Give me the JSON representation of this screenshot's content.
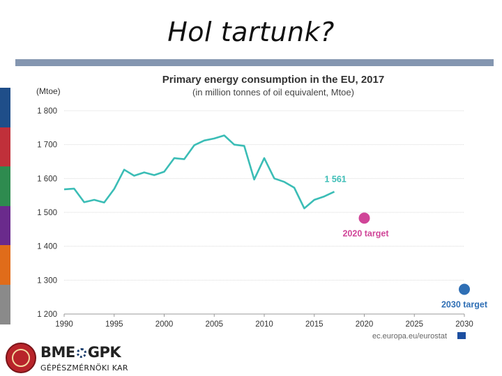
{
  "slide": {
    "title": "Hol tartunk?"
  },
  "colors": {
    "side_bars": [
      "#1f4e89",
      "#c0303a",
      "#2e8b4f",
      "#6a2a8c",
      "#e06c1a",
      "#8a8a8a"
    ],
    "line": "#3bbdb6",
    "target_2020": "#d04598",
    "target_2030": "#2f6fb5",
    "rule": "#8496b0"
  },
  "chart_data": {
    "type": "line",
    "title": "Primary energy consumption in the EU, 2017",
    "subtitle": "(in million tonnes of oil equivalent, Mtoe)",
    "ylabel": "(Mtoe)",
    "xlim": [
      1990,
      2030
    ],
    "ylim": [
      1200,
      1800
    ],
    "yticks": [
      1200,
      1300,
      1400,
      1500,
      1600,
      1700,
      1800
    ],
    "ytick_labels": [
      "1 200",
      "1 300",
      "1 400",
      "1 500",
      "1 600",
      "1 700",
      "1 800"
    ],
    "xticks": [
      1990,
      1995,
      2000,
      2005,
      2010,
      2015,
      2020,
      2025,
      2030
    ],
    "xtick_labels": [
      "1990",
      "1995",
      "2000",
      "2005",
      "2010",
      "2015",
      "2020",
      "2025",
      "2030"
    ],
    "grid": true,
    "series": [
      {
        "name": "Primary energy consumption",
        "x": [
          1990,
          1991,
          1992,
          1993,
          1994,
          1995,
          1996,
          1997,
          1998,
          1999,
          2000,
          2001,
          2002,
          2003,
          2004,
          2005,
          2006,
          2007,
          2008,
          2009,
          2010,
          2011,
          2012,
          2013,
          2014,
          2015,
          2016,
          2017
        ],
        "y": [
          1568,
          1570,
          1530,
          1537,
          1529,
          1569,
          1626,
          1608,
          1618,
          1610,
          1620,
          1660,
          1657,
          1698,
          1712,
          1718,
          1727,
          1700,
          1696,
          1597,
          1660,
          1600,
          1590,
          1573,
          1512,
          1537,
          1547,
          1561
        ]
      }
    ],
    "end_label": "1 561",
    "targets": [
      {
        "year": 2020,
        "value": 1483,
        "label": "2020 target"
      },
      {
        "year": 2030,
        "value": 1273,
        "label": "2030 target"
      }
    ],
    "source": "ec.europa.eu/eurostat"
  },
  "footer": {
    "brand": "BME GPK",
    "brand_left": "BME",
    "brand_right": "GPK",
    "subtitle": "GÉPÉSZMÉRNÖKI KAR"
  }
}
